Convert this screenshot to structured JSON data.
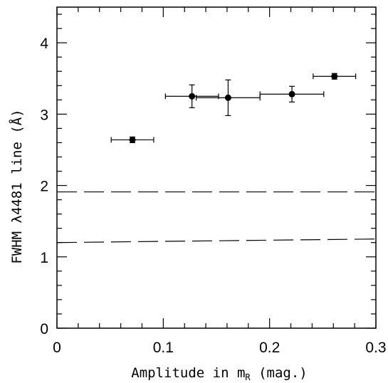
{
  "chart_data": {
    "type": "scatter",
    "title": "",
    "xlabel_main": "Amplitude in m",
    "xlabel_sub": "R",
    "xlabel_tail": " (mag.)",
    "ylabel": "FWHM λ4481 line (Å)",
    "xlim": [
      0,
      0.3
    ],
    "ylim": [
      0,
      4.5
    ],
    "x_ticks": [
      0,
      0.1,
      0.2,
      0.3
    ],
    "x_tick_labels": [
      "0",
      "0.1",
      "0.2",
      "0.3"
    ],
    "y_ticks": [
      0,
      1,
      2,
      3,
      4
    ],
    "y_tick_labels": [
      "0",
      "1",
      "2",
      "3",
      "4"
    ],
    "x_minor_step": 0.02,
    "y_minor_step": 0.2,
    "points": [
      {
        "x": 0.071,
        "y": 2.64,
        "xerr": 0.02,
        "yerr": 0.04
      },
      {
        "x": 0.127,
        "y": 3.25,
        "xerr": 0.025,
        "yerr": 0.16
      },
      {
        "x": 0.161,
        "y": 3.23,
        "xerr": 0.03,
        "yerr": 0.25
      },
      {
        "x": 0.221,
        "y": 3.28,
        "xerr": 0.03,
        "yerr": 0.11
      },
      {
        "x": 0.261,
        "y": 3.53,
        "xerr": 0.02,
        "yerr": 0.04
      }
    ],
    "reference_lines": [
      {
        "x": [
          0,
          0.3
        ],
        "y": [
          1.91,
          1.91
        ],
        "style": "dashed"
      },
      {
        "x": [
          0,
          0.3
        ],
        "y": [
          1.2,
          1.25
        ],
        "style": "dashed"
      }
    ],
    "grid": false,
    "marker_color": "#000000"
  }
}
